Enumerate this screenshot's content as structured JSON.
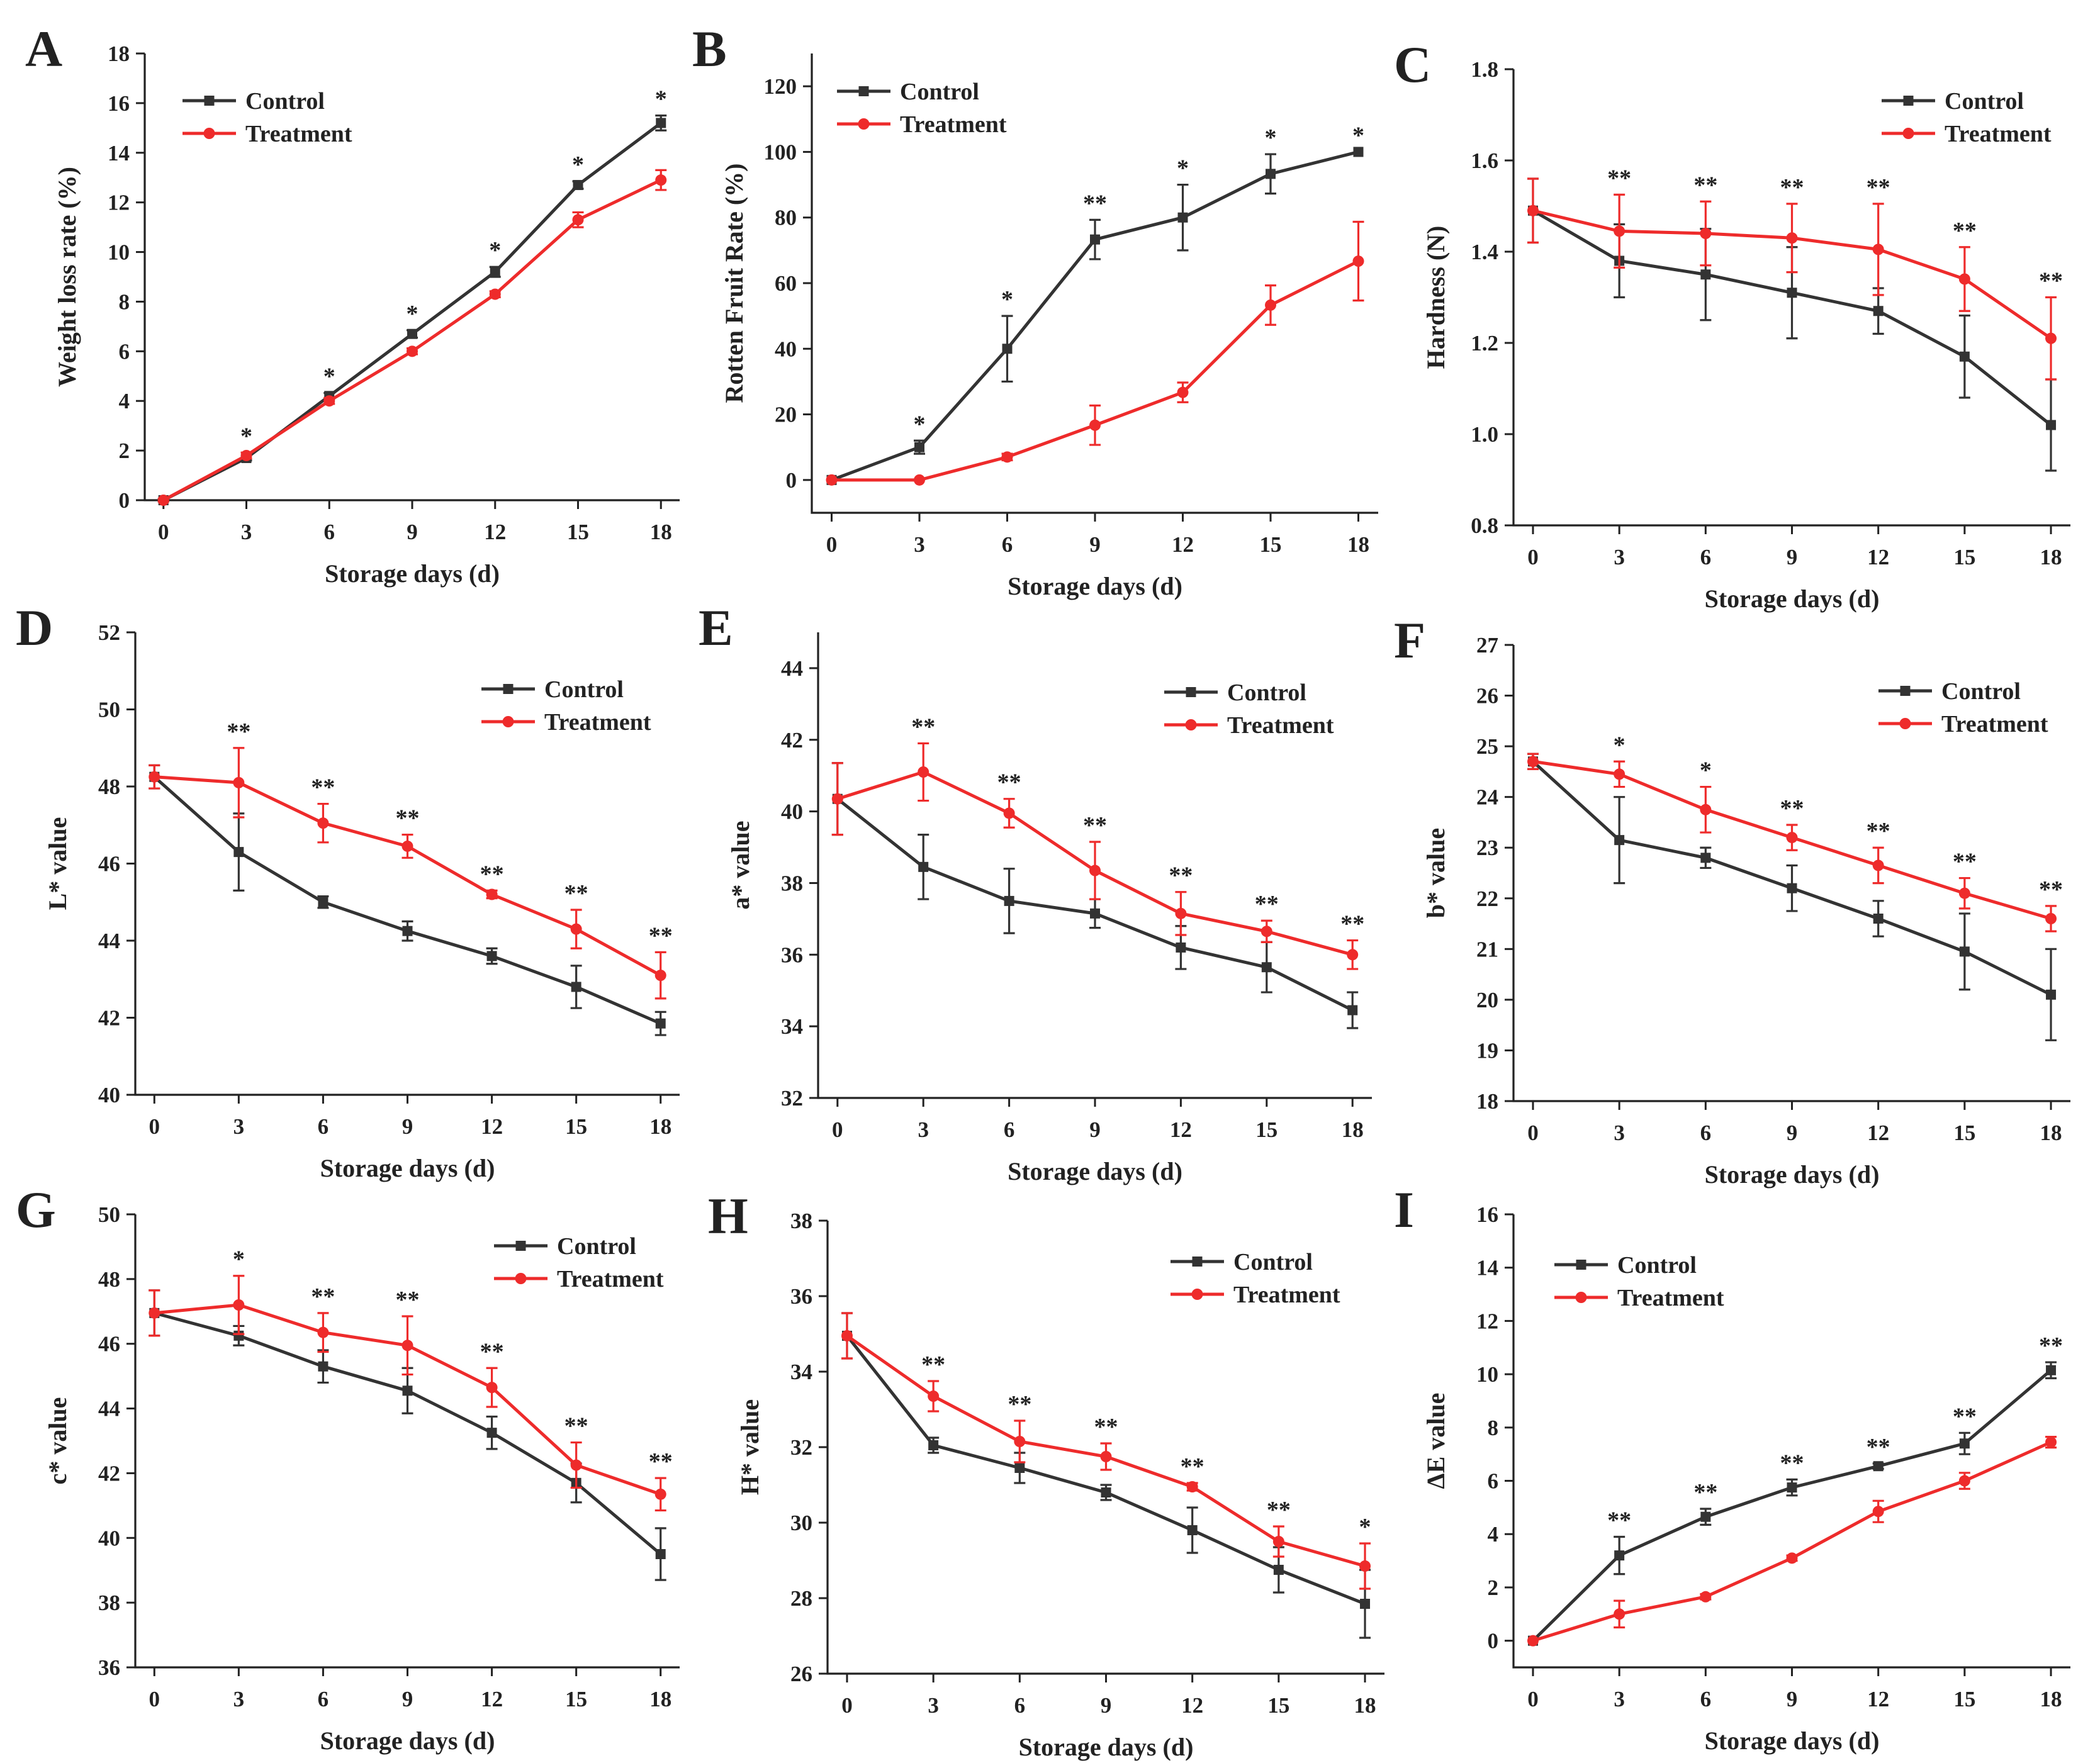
{
  "figure": {
    "background": "#ffffff"
  },
  "colors": {
    "Control": "#333333",
    "Treatment": "#ee2b2b"
  },
  "chart_data": [
    {
      "panel": "A",
      "type": "line",
      "xlabel": "Storage days (d)",
      "ylabel": "Weight loss rate (%)",
      "x": [
        0,
        3,
        6,
        9,
        12,
        15,
        18
      ],
      "ylim": [
        0,
        18
      ],
      "yticks": [
        0,
        2,
        4,
        6,
        8,
        10,
        12,
        14,
        16,
        18
      ],
      "legend": "top-left",
      "series": [
        {
          "name": "Control",
          "values": [
            0,
            1.7,
            4.2,
            6.7,
            9.2,
            12.7,
            15.2
          ],
          "errors": [
            0.05,
            0.1,
            0.12,
            0.15,
            0.2,
            0.15,
            0.3
          ]
        },
        {
          "name": "Treatment",
          "values": [
            0,
            1.8,
            4.0,
            6.0,
            8.3,
            11.3,
            12.9
          ],
          "errors": [
            0.05,
            0.12,
            0.12,
            0.12,
            0.12,
            0.3,
            0.4
          ]
        }
      ],
      "significance": [
        "",
        "*",
        "*",
        "*",
        "*",
        "*",
        "*"
      ]
    },
    {
      "panel": "B",
      "type": "line",
      "xlabel": "Storage days (d)",
      "ylabel": "Rotten Fruit Rate (%)",
      "x": [
        0,
        3,
        6,
        9,
        12,
        15,
        18
      ],
      "ylim": [
        -10,
        130
      ],
      "yticks": [
        0,
        20,
        40,
        60,
        80,
        100,
        120
      ],
      "legend": "top-left",
      "series": [
        {
          "name": "Control",
          "values": [
            0,
            10,
            40,
            73.3,
            80,
            93.3,
            100
          ],
          "errors": [
            0,
            2,
            10,
            6,
            10,
            6,
            0
          ]
        },
        {
          "name": "Treatment",
          "values": [
            0,
            0,
            7,
            16.7,
            26.7,
            53.3,
            66.7
          ],
          "errors": [
            0,
            0,
            1,
            6,
            3,
            6,
            12
          ]
        }
      ],
      "significance": [
        "",
        "*",
        "*",
        "**",
        "*",
        "*",
        "*"
      ]
    },
    {
      "panel": "C",
      "type": "line",
      "xlabel": "Storage days (d)",
      "ylabel": "Hardness (N)",
      "x": [
        0,
        3,
        6,
        9,
        12,
        15,
        18
      ],
      "ylim": [
        0.8,
        1.8
      ],
      "yticks": [
        0.8,
        1.0,
        1.2,
        1.4,
        1.6,
        1.8
      ],
      "legend": "top-right",
      "series": [
        {
          "name": "Control",
          "values": [
            1.49,
            1.38,
            1.35,
            1.31,
            1.27,
            1.17,
            1.02
          ],
          "errors": [
            0.07,
            0.08,
            0.1,
            0.1,
            0.05,
            0.09,
            0.1
          ]
        },
        {
          "name": "Treatment",
          "values": [
            1.49,
            1.445,
            1.44,
            1.43,
            1.405,
            1.34,
            1.21
          ],
          "errors": [
            0.07,
            0.08,
            0.07,
            0.075,
            0.1,
            0.07,
            0.09
          ]
        }
      ],
      "significance": [
        "",
        "**",
        "**",
        "**",
        "**",
        "**",
        "**"
      ]
    },
    {
      "panel": "D",
      "type": "line",
      "xlabel": "Storage days (d)",
      "ylabel": "L* value",
      "x": [
        0,
        3,
        6,
        9,
        12,
        15,
        18
      ],
      "ylim": [
        40,
        52
      ],
      "yticks": [
        40,
        42,
        44,
        46,
        48,
        50,
        52
      ],
      "legend": "top-right",
      "series": [
        {
          "name": "Control",
          "values": [
            48.25,
            46.3,
            45.0,
            44.25,
            43.6,
            42.8,
            41.85
          ],
          "errors": [
            0.3,
            1.0,
            0.15,
            0.25,
            0.2,
            0.55,
            0.3
          ]
        },
        {
          "name": "Treatment",
          "values": [
            48.25,
            48.1,
            47.05,
            46.45,
            45.2,
            44.3,
            43.1
          ],
          "errors": [
            0.3,
            0.9,
            0.5,
            0.3,
            0.1,
            0.5,
            0.6
          ]
        }
      ],
      "significance": [
        "",
        "**",
        "**",
        "**",
        "**",
        "**",
        "**"
      ]
    },
    {
      "panel": "E",
      "type": "line",
      "xlabel": "Storage days (d)",
      "ylabel": "a* value",
      "x": [
        0,
        3,
        6,
        9,
        12,
        15,
        18
      ],
      "ylim": [
        32,
        45
      ],
      "yticks": [
        32,
        34,
        36,
        38,
        40,
        42,
        44
      ],
      "legend": "top-right",
      "series": [
        {
          "name": "Control",
          "values": [
            40.35,
            38.45,
            37.5,
            37.15,
            36.2,
            35.65,
            34.45
          ],
          "errors": [
            1.0,
            0.9,
            0.9,
            0.4,
            0.6,
            0.7,
            0.5
          ]
        },
        {
          "name": "Treatment",
          "values": [
            40.35,
            41.1,
            39.95,
            38.35,
            37.15,
            36.65,
            36.0
          ],
          "errors": [
            1.0,
            0.8,
            0.4,
            0.8,
            0.6,
            0.3,
            0.4
          ]
        }
      ],
      "significance": [
        "",
        "**",
        "**",
        "**",
        "**",
        "**",
        "**"
      ]
    },
    {
      "panel": "F",
      "type": "line",
      "xlabel": "Storage days (d)",
      "ylabel": "b* value",
      "x": [
        0,
        3,
        6,
        9,
        12,
        15,
        18
      ],
      "ylim": [
        18,
        27
      ],
      "yticks": [
        18,
        19,
        20,
        21,
        22,
        23,
        24,
        25,
        26,
        27
      ],
      "legend": "top-right",
      "series": [
        {
          "name": "Control",
          "values": [
            24.7,
            23.15,
            22.8,
            22.2,
            21.6,
            20.95,
            20.1
          ],
          "errors": [
            0.15,
            0.85,
            0.2,
            0.45,
            0.35,
            0.75,
            0.9
          ]
        },
        {
          "name": "Treatment",
          "values": [
            24.7,
            24.45,
            23.75,
            23.2,
            22.65,
            22.1,
            21.6
          ],
          "errors": [
            0.15,
            0.25,
            0.45,
            0.25,
            0.35,
            0.3,
            0.25
          ]
        }
      ],
      "significance": [
        "",
        "*",
        "*",
        "**",
        "**",
        "**",
        "**"
      ]
    },
    {
      "panel": "G",
      "type": "line",
      "xlabel": "Storage days (d)",
      "ylabel": "c* value",
      "x": [
        0,
        3,
        6,
        9,
        12,
        15,
        18
      ],
      "ylim": [
        36,
        50
      ],
      "yticks": [
        36,
        38,
        40,
        42,
        44,
        46,
        48,
        50
      ],
      "legend": "top-right",
      "series": [
        {
          "name": "Control",
          "values": [
            46.95,
            46.25,
            45.3,
            44.55,
            43.25,
            41.7,
            39.5
          ],
          "errors": [
            0.7,
            0.3,
            0.5,
            0.7,
            0.5,
            0.6,
            0.8
          ]
        },
        {
          "name": "Treatment",
          "values": [
            46.95,
            47.2,
            46.35,
            45.95,
            44.65,
            42.25,
            41.35
          ],
          "errors": [
            0.7,
            0.9,
            0.6,
            0.9,
            0.6,
            0.7,
            0.5
          ]
        }
      ],
      "significance": [
        "",
        "*",
        "**",
        "**",
        "**",
        "**",
        "**"
      ]
    },
    {
      "panel": "H",
      "type": "line",
      "xlabel": "Storage days (d)",
      "ylabel": "H* value",
      "x": [
        0,
        3,
        6,
        9,
        12,
        15,
        18
      ],
      "ylim": [
        26,
        38
      ],
      "yticks": [
        26,
        28,
        30,
        32,
        34,
        36,
        38
      ],
      "legend": "top-right",
      "series": [
        {
          "name": "Control",
          "values": [
            34.95,
            32.05,
            31.45,
            30.8,
            29.8,
            28.75,
            27.85
          ],
          "errors": [
            0.6,
            0.2,
            0.4,
            0.2,
            0.6,
            0.6,
            0.9
          ]
        },
        {
          "name": "Treatment",
          "values": [
            34.95,
            33.35,
            32.15,
            31.75,
            30.95,
            29.5,
            28.85
          ],
          "errors": [
            0.6,
            0.4,
            0.55,
            0.35,
            0.1,
            0.4,
            0.6
          ]
        }
      ],
      "significance": [
        "",
        "**",
        "**",
        "**",
        "**",
        "**",
        "*"
      ]
    },
    {
      "panel": "I",
      "type": "line",
      "xlabel": "Storage days (d)",
      "ylabel": "ΔE value",
      "x": [
        0,
        3,
        6,
        9,
        12,
        15,
        18
      ],
      "ylim": [
        -1,
        16
      ],
      "yticks": [
        0,
        2,
        4,
        6,
        8,
        10,
        12,
        14,
        16
      ],
      "legend": "top-left",
      "series": [
        {
          "name": "Control",
          "values": [
            0,
            3.2,
            4.65,
            5.75,
            6.55,
            7.4,
            10.15
          ],
          "errors": [
            0,
            0.7,
            0.3,
            0.3,
            0.1,
            0.4,
            0.3
          ]
        },
        {
          "name": "Treatment",
          "values": [
            0,
            1.0,
            1.65,
            3.1,
            4.85,
            6.0,
            7.45
          ],
          "errors": [
            0,
            0.5,
            0.1,
            0.1,
            0.4,
            0.3,
            0.2
          ]
        }
      ],
      "significance": [
        "",
        "**",
        "**",
        "**",
        "**",
        "**",
        "**"
      ]
    }
  ]
}
